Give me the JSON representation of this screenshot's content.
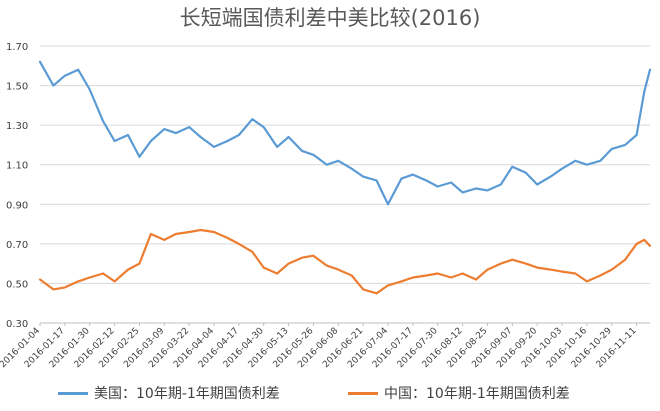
{
  "chart_data": {
    "type": "line",
    "title": "长短端国债利差中美比较(2016)",
    "xlabel": "",
    "ylabel": "",
    "ylim": [
      0.3,
      1.7
    ],
    "yticks": [
      "0.30",
      "0.50",
      "0.70",
      "0.90",
      "1.10",
      "1.30",
      "1.50",
      "1.70"
    ],
    "grid": true,
    "legend_position": "bottom",
    "xticks": [
      "2016-01-04",
      "2016-01-17",
      "2016-01-30",
      "2016-02-12",
      "2016-02-25",
      "2016-03-09",
      "2016-03-22",
      "2016-04-04",
      "2016-04-17",
      "2016-04-30",
      "2016-05-13",
      "2016-05-26",
      "2016-06-08",
      "2016-06-21",
      "2016-07-04",
      "2016-07-17",
      "2016-07-30",
      "2016-08-12",
      "2016-08-25",
      "2016-09-07",
      "2016-09-20",
      "2016-10-03",
      "2016-10-16",
      "2016-10-29",
      "2016-11-11"
    ],
    "x": [
      "2016-01-04",
      "2016-01-11",
      "2016-01-17",
      "2016-01-24",
      "2016-01-30",
      "2016-02-06",
      "2016-02-12",
      "2016-02-19",
      "2016-02-25",
      "2016-03-02",
      "2016-03-09",
      "2016-03-15",
      "2016-03-22",
      "2016-03-28",
      "2016-04-04",
      "2016-04-11",
      "2016-04-17",
      "2016-04-24",
      "2016-04-30",
      "2016-05-07",
      "2016-05-13",
      "2016-05-20",
      "2016-05-26",
      "2016-06-02",
      "2016-06-08",
      "2016-06-15",
      "2016-06-21",
      "2016-06-28",
      "2016-07-04",
      "2016-07-11",
      "2016-07-17",
      "2016-07-24",
      "2016-07-30",
      "2016-08-06",
      "2016-08-12",
      "2016-08-19",
      "2016-08-25",
      "2016-09-01",
      "2016-09-07",
      "2016-09-14",
      "2016-09-20",
      "2016-09-27",
      "2016-10-03",
      "2016-10-10",
      "2016-10-16",
      "2016-10-23",
      "2016-10-29",
      "2016-11-05",
      "2016-11-11",
      "2016-11-15",
      "2016-11-18"
    ],
    "series": [
      {
        "name": "美国：10年期-1年期国债利差",
        "color": "#5b9bd5",
        "values": [
          1.62,
          1.5,
          1.55,
          1.58,
          1.48,
          1.32,
          1.22,
          1.25,
          1.14,
          1.22,
          1.28,
          1.26,
          1.29,
          1.24,
          1.19,
          1.22,
          1.25,
          1.33,
          1.29,
          1.19,
          1.24,
          1.17,
          1.15,
          1.1,
          1.12,
          1.08,
          1.04,
          1.02,
          0.9,
          1.03,
          1.05,
          1.02,
          0.99,
          1.01,
          0.96,
          0.98,
          0.97,
          1.0,
          1.09,
          1.06,
          1.0,
          1.04,
          1.08,
          1.12,
          1.1,
          1.12,
          1.18,
          1.2,
          1.25,
          1.47,
          1.58
        ]
      },
      {
        "name": "中国：10年期-1年期国债利差",
        "color": "#ed7d31",
        "values": [
          0.52,
          0.47,
          0.48,
          0.51,
          0.53,
          0.55,
          0.51,
          0.57,
          0.6,
          0.75,
          0.72,
          0.75,
          0.76,
          0.77,
          0.76,
          0.73,
          0.7,
          0.66,
          0.58,
          0.55,
          0.6,
          0.63,
          0.64,
          0.59,
          0.57,
          0.54,
          0.47,
          0.45,
          0.49,
          0.51,
          0.53,
          0.54,
          0.55,
          0.53,
          0.55,
          0.52,
          0.57,
          0.6,
          0.62,
          0.6,
          0.58,
          0.57,
          0.56,
          0.55,
          0.51,
          0.54,
          0.57,
          0.62,
          0.7,
          0.72,
          0.69
        ]
      }
    ]
  }
}
